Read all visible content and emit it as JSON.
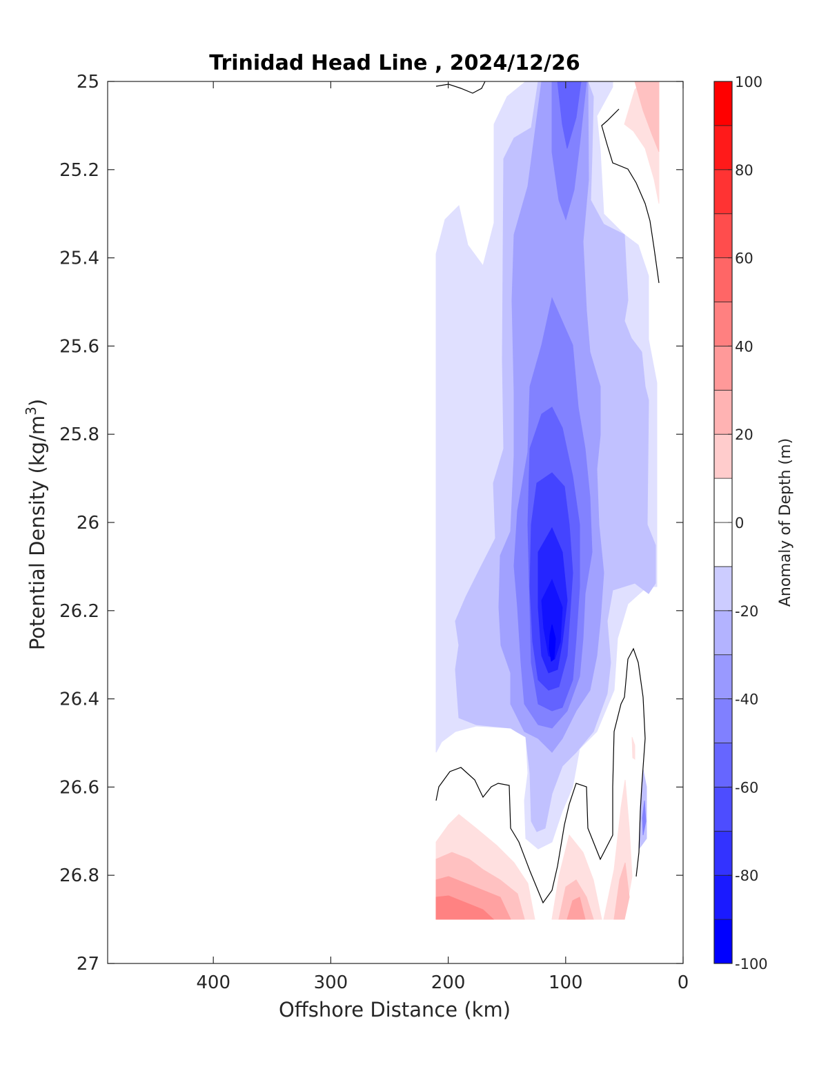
{
  "chart_data": {
    "type": "contourf",
    "title": "Trinidad Head Line , 2024/12/26",
    "xlabel": "Offshore Distance (km)",
    "ylabel_main": "Potential Density (kg/m",
    "ylabel_sup": "3",
    "ylabel_end": ")",
    "colorbar_label": "Anomaly of Depth (m)",
    "xlim": [
      490,
      0
    ],
    "x_reversed": true,
    "ylim": [
      25,
      27
    ],
    "y_reversed": true,
    "xticks": [
      400,
      300,
      200,
      100,
      0
    ],
    "yticks": [
      25,
      25.2,
      25.4,
      25.6,
      25.8,
      26,
      26.2,
      26.4,
      26.6,
      26.8,
      27
    ],
    "ytick_labels": [
      "25",
      "25.2",
      "25.4",
      "25.6",
      "25.8",
      "26",
      "26.2",
      "26.4",
      "26.6",
      "26.8",
      "27"
    ],
    "colorbar_range": [
      -100,
      100
    ],
    "colorbar_ticks": [
      100,
      80,
      60,
      40,
      20,
      0,
      -20,
      -40,
      -60,
      -80,
      -100
    ],
    "colorbar_step": 10,
    "colormap": {
      "low": "#0000ff",
      "mid": "#ffffff",
      "high": "#ff0000"
    },
    "zero_contour_color": "#000000",
    "data_extent": {
      "x": [
        20,
        210
      ],
      "y": [
        25,
        26.9
      ]
    },
    "features": [
      {
        "desc": "negative anomaly core",
        "x": 100,
        "y": 26.3,
        "value": -90
      },
      {
        "desc": "positive anomaly offshore deep",
        "x": 200,
        "y": 26.88,
        "value": 40
      },
      {
        "desc": "positive anomaly nearshore surface",
        "x": 25,
        "y": 25.05,
        "value": 25
      }
    ]
  }
}
